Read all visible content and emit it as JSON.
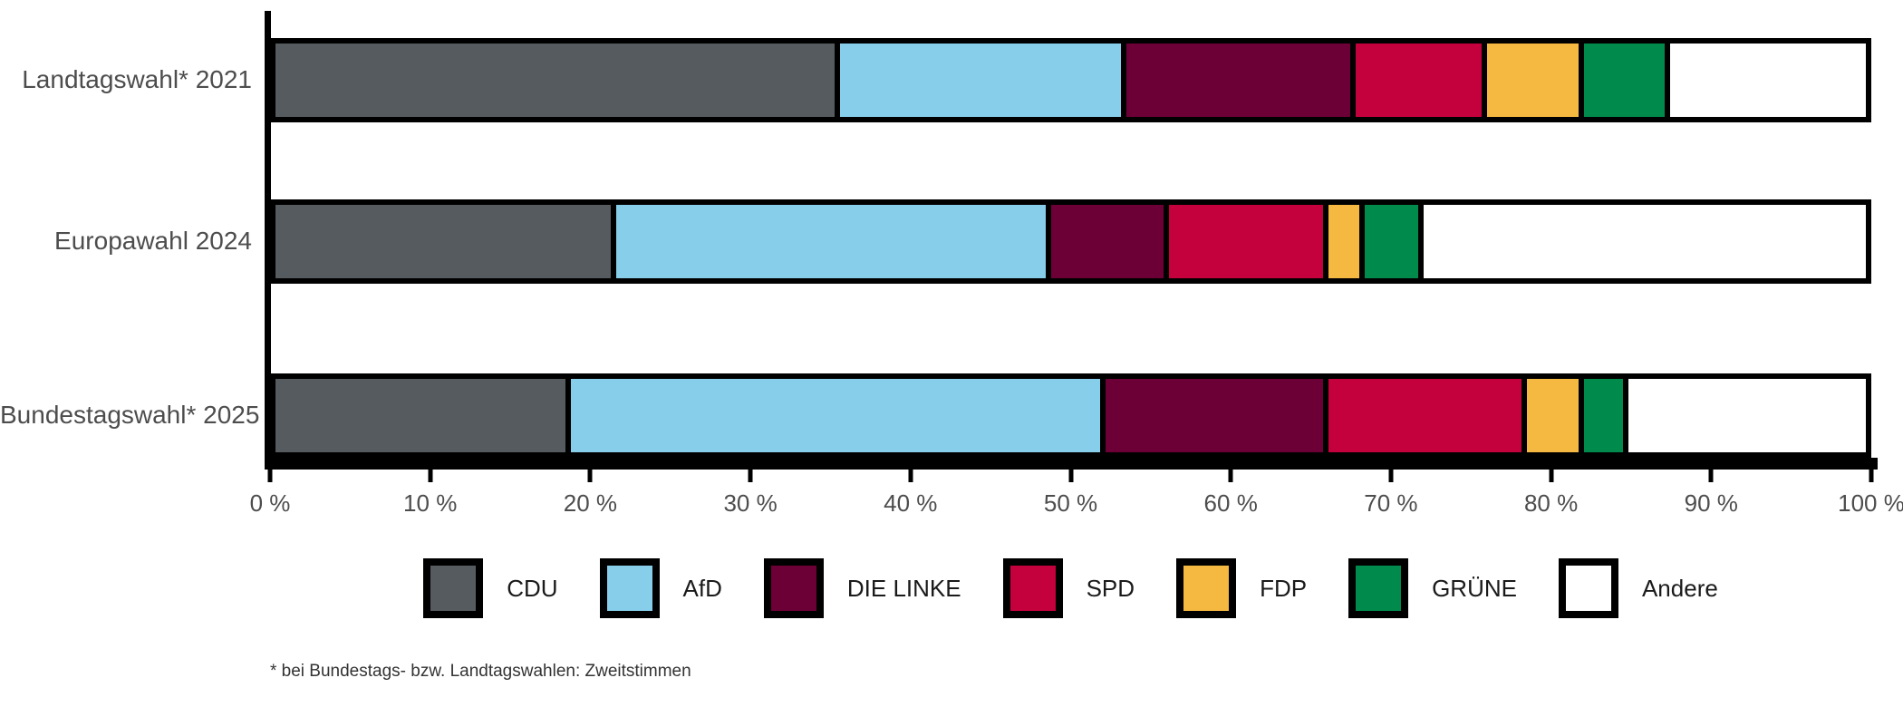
{
  "chart_data": {
    "type": "bar",
    "orientation": "horizontal-stacked",
    "categories": [
      "Landtagswahl* 2021",
      "Europawahl 2024",
      "Bundestagswahl* 2025"
    ],
    "series": [
      {
        "name": "CDU",
        "color": "#555B5E",
        "values": [
          35.5,
          21.4,
          18.6
        ]
      },
      {
        "name": "AfD",
        "color": "#87CEEA",
        "values": [
          18.0,
          27.4,
          33.6
        ]
      },
      {
        "name": "DIE LINKE",
        "color": "#6C0036",
        "values": [
          14.4,
          7.4,
          14.0
        ]
      },
      {
        "name": "SPD",
        "color": "#C4003D",
        "values": [
          8.3,
          10.0,
          12.5
        ]
      },
      {
        "name": "FDP",
        "color": "#F5B840",
        "values": [
          6.1,
          2.3,
          3.6
        ]
      },
      {
        "name": "GRÜNE",
        "color": "#008A4C",
        "values": [
          5.4,
          3.7,
          2.8
        ]
      },
      {
        "name": "Andere",
        "color": "#FFFFFF",
        "values": [
          12.3,
          27.8,
          14.9
        ]
      }
    ],
    "xlim": [
      0,
      100
    ],
    "x_ticks": [
      0,
      10,
      20,
      30,
      40,
      50,
      60,
      70,
      80,
      90,
      100
    ],
    "x_tick_suffix": " %",
    "legend_position": "bottom",
    "grid": false,
    "bar_outline_color": "#000000"
  },
  "footnote": "* bei Bundestags- bzw. Landtagswahlen: Zweitstimmen"
}
